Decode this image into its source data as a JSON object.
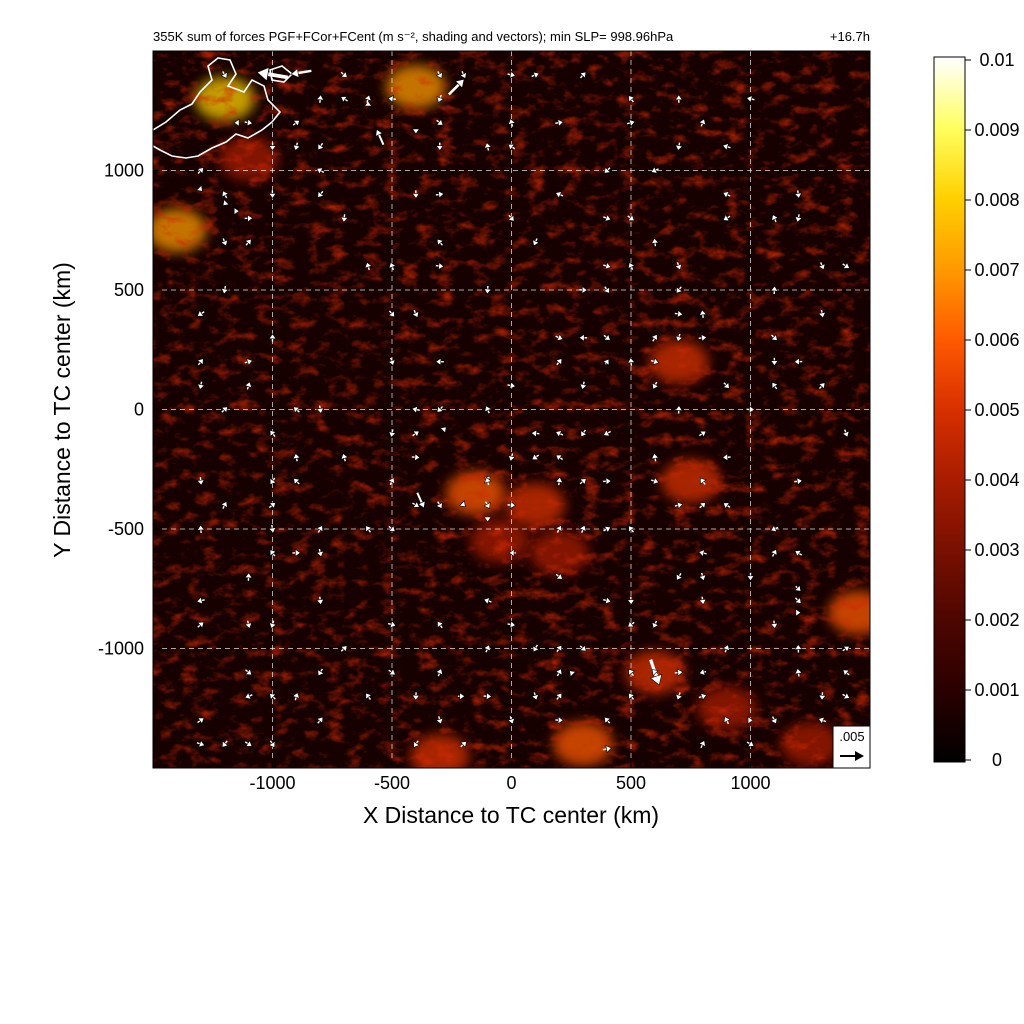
{
  "chart_data": {
    "type": "heatmap",
    "title": "355K sum of forces PGF+FCor+FCent (m s⁻², shading and vectors); min SLP= 998.96hPa",
    "time_label": "+16.7h",
    "xlabel": "X Distance to TC center (km)",
    "ylabel": "Y Distance to TC center (km)",
    "xlim": [
      -1500,
      1500
    ],
    "ylim": [
      -1500,
      1500
    ],
    "x_ticks": [
      -1000,
      -500,
      0,
      500,
      1000
    ],
    "y_ticks": [
      1000,
      500,
      0,
      -500,
      -1000
    ],
    "grid": true,
    "colorbar": {
      "min": 0,
      "max": 0.01,
      "ticks": [
        "0.01",
        "0.009",
        "0.008",
        "0.007",
        "0.006",
        "0.005",
        "0.004",
        "0.003",
        "0.002",
        "0.001",
        "0"
      ],
      "colors": [
        "#000000",
        "#2a0000",
        "#4c0600",
        "#781000",
        "#a81c00",
        "#d83000",
        "#ff5a00",
        "#ff9a00",
        "#ffd000",
        "#ffff60",
        "#ffffff"
      ]
    },
    "reference_vector": {
      "label": ".005",
      "magnitude": 0.005
    },
    "hotspots": [
      {
        "x": -1200,
        "y": 1300,
        "v": 0.008
      },
      {
        "x": -400,
        "y": 1350,
        "v": 0.007
      },
      {
        "x": -1400,
        "y": 750,
        "v": 0.007
      },
      {
        "x": -150,
        "y": -350,
        "v": 0.006
      },
      {
        "x": 100,
        "y": -400,
        "v": 0.005
      },
      {
        "x": 750,
        "y": -300,
        "v": 0.005
      },
      {
        "x": 700,
        "y": 200,
        "v": 0.005
      },
      {
        "x": 1450,
        "y": -850,
        "v": 0.006
      },
      {
        "x": 300,
        "y": -1400,
        "v": 0.006
      },
      {
        "x": -300,
        "y": -1450,
        "v": 0.005
      },
      {
        "x": 600,
        "y": -1100,
        "v": 0.005
      },
      {
        "x": 900,
        "y": -1250,
        "v": 0.004
      },
      {
        "x": -1100,
        "y": 1050,
        "v": 0.004
      },
      {
        "x": 200,
        "y": -600,
        "v": 0.004
      },
      {
        "x": -50,
        "y": -550,
        "v": 0.004
      },
      {
        "x": 1250,
        "y": -1400,
        "v": 0.004
      }
    ],
    "vectors": [
      {
        "x": -1000,
        "y": 1400,
        "u": -0.009,
        "v": 0.0015
      },
      {
        "x": -880,
        "y": 1410,
        "u": -0.006,
        "v": -0.001
      },
      {
        "x": -230,
        "y": 1350,
        "u": 0.0045,
        "v": 0.0045
      },
      {
        "x": -550,
        "y": 1140,
        "u": -0.002,
        "v": 0.0045
      },
      {
        "x": -380,
        "y": -380,
        "u": 0.002,
        "v": -0.0045
      },
      {
        "x": 600,
        "y": -1100,
        "u": 0.0025,
        "v": -0.0075
      },
      {
        "x": -100,
        "y": -290,
        "u": 0.0015,
        "v": 0.0015
      },
      {
        "x": -1200,
        "y": 860,
        "u": -0.001,
        "v": -0.001
      },
      {
        "x": -1150,
        "y": 830,
        "u": 0.0015,
        "v": 0.0
      },
      {
        "x": 4,
        "y": -600,
        "u": -0.002,
        "v": 0.0
      },
      {
        "x": 1200,
        "y": -750,
        "u": 0.0015,
        "v": -0.0015
      },
      {
        "x": 1200,
        "y": -850,
        "u": 0.0015,
        "v": 0.0
      },
      {
        "x": 800,
        "y": -1100,
        "u": -0.002,
        "v": -0.0005
      },
      {
        "x": -210,
        "y": -1200,
        "u": 0.002,
        "v": 0.0
      },
      {
        "x": 400,
        "y": -1420,
        "u": 0.0025,
        "v": 0.0005
      },
      {
        "x": 400,
        "y": 200,
        "u": 0.001,
        "v": 0.0015
      },
      {
        "x": -1300,
        "y": 920,
        "u": 0.001,
        "v": -0.001
      },
      {
        "x": -1150,
        "y": 1200,
        "u": -0.0015,
        "v": 0.0
      },
      {
        "x": -280,
        "y": -80,
        "u": 0.001,
        "v": 0.001
      },
      {
        "x": -200,
        "y": -400,
        "u": 0.001,
        "v": -0.001
      },
      {
        "x": -100,
        "y": -460,
        "u": 0.0,
        "v": -0.0015
      },
      {
        "x": 250,
        "y": -1100,
        "u": -0.001,
        "v": 0.001
      },
      {
        "x": 1000,
        "y": -1300,
        "u": 0.0015,
        "v": 0.0
      },
      {
        "x": -600,
        "y": 1280,
        "u": 0.0,
        "v": 0.0015
      },
      {
        "x": -400,
        "y": 1160,
        "u": 0.0,
        "v": -0.001
      }
    ]
  }
}
